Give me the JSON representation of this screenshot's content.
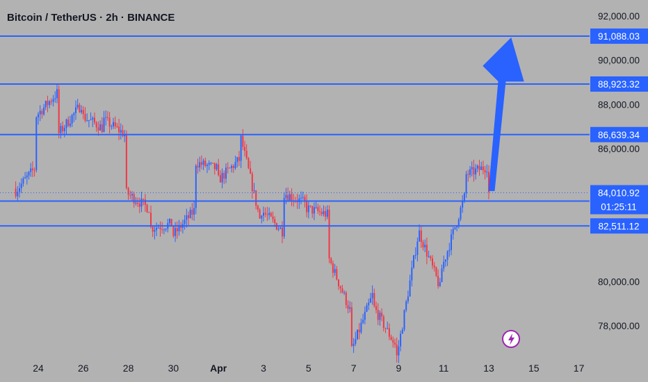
{
  "header": {
    "title": "Bitcoin / TetherUS · 2h · BINANCE"
  },
  "colors": {
    "background": "#b2b2b2",
    "bull": "#2962ff",
    "bear": "#f23645",
    "level_line": "#2962ff",
    "label_bg": "#2962ff",
    "label_text": "#ffffff",
    "axis_text": "#131722",
    "logo": "#9c27b0"
  },
  "icons": {
    "corner_logo": "lightning-bolt-icon"
  },
  "chart_data": {
    "type": "candlestick",
    "title": "Bitcoin / TetherUS · 2h · BINANCE",
    "interval": "2h",
    "exchange": "BINANCE",
    "xlabel": "",
    "ylabel": "",
    "ylim": [
      76000,
      92500
    ],
    "grid": false,
    "legend": "none",
    "y_ticks": [
      {
        "value": 92000,
        "label": "92,000.00"
      },
      {
        "value": 90000,
        "label": "90,000.00"
      },
      {
        "value": 88000,
        "label": "88,000.00"
      },
      {
        "value": 86000,
        "label": "86,000.00"
      },
      {
        "value": 80000,
        "label": "80,000.00"
      },
      {
        "value": 78000,
        "label": "78,000.00"
      }
    ],
    "x_ticks": [
      "24",
      "26",
      "28",
      "30",
      "Apr",
      "3",
      "5",
      "7",
      "9",
      "11",
      "13",
      "15",
      "17"
    ],
    "horizontal_levels": [
      {
        "value": 91088.03,
        "label": "91,088.03"
      },
      {
        "value": 88923.32,
        "label": "88,923.32"
      },
      {
        "value": 86639.34,
        "label": "86,639.34"
      },
      {
        "value": 83635.49,
        "label": "83,635.49"
      },
      {
        "value": 82511.12,
        "label": "82,511.12"
      }
    ],
    "current_price": {
      "value": 84010.92,
      "label": "84,010.92",
      "countdown": "01:25:11"
    },
    "projection_arrow": {
      "from_price": 84100,
      "to_price": 91000,
      "direction": "up"
    },
    "price_path": [
      {
        "date": "Mar 23",
        "price": 84200
      },
      {
        "date": "Mar 23 12:00",
        "price": 84000
      },
      {
        "date": "Mar 24",
        "price": 85200
      },
      {
        "date": "Mar 24 12:00",
        "price": 87500
      },
      {
        "date": "Mar 25",
        "price": 88600
      },
      {
        "date": "Mar 25 12:00",
        "price": 86700
      },
      {
        "date": "Mar 26",
        "price": 88000
      },
      {
        "date": "Mar 26 12:00",
        "price": 87500
      },
      {
        "date": "Mar 27",
        "price": 86900
      },
      {
        "date": "Mar 27 12:00",
        "price": 87300
      },
      {
        "date": "Mar 28",
        "price": 86600
      },
      {
        "date": "Mar 28 12:00",
        "price": 84000
      },
      {
        "date": "Mar 29",
        "price": 83300
      },
      {
        "date": "Mar 29 12:00",
        "price": 82400
      },
      {
        "date": "Mar 30",
        "price": 82600
      },
      {
        "date": "Mar 30 12:00",
        "price": 82000
      },
      {
        "date": "Mar 31",
        "price": 83200
      },
      {
        "date": "Mar 31 12:00",
        "price": 85400
      },
      {
        "date": "Apr 1",
        "price": 85100
      },
      {
        "date": "Apr 1 12:00",
        "price": 84500
      },
      {
        "date": "Apr 2",
        "price": 85500
      },
      {
        "date": "Apr 2 12:00",
        "price": 86800
      },
      {
        "date": "Apr 3",
        "price": 82500
      },
      {
        "date": "Apr 3 12:00",
        "price": 83200
      },
      {
        "date": "Apr 4",
        "price": 82200
      },
      {
        "date": "Apr 4 12:00",
        "price": 84000
      },
      {
        "date": "Apr 5",
        "price": 83500
      },
      {
        "date": "Apr 5 12:00",
        "price": 83300
      },
      {
        "date": "Apr 6",
        "price": 83000
      },
      {
        "date": "Apr 6 12:00",
        "price": 81000
      },
      {
        "date": "Apr 7",
        "price": 78500
      },
      {
        "date": "Apr 7 12:00",
        "price": 76900
      },
      {
        "date": "Apr 8",
        "price": 79600
      },
      {
        "date": "Apr 8 12:00",
        "price": 78800
      },
      {
        "date": "Apr 9",
        "price": 77000
      },
      {
        "date": "Apr 9 12:00",
        "price": 76600
      },
      {
        "date": "Apr 10",
        "price": 82400
      },
      {
        "date": "Apr 10 12:00",
        "price": 82200
      },
      {
        "date": "Apr 11",
        "price": 79500
      },
      {
        "date": "Apr 11 12:00",
        "price": 80600
      },
      {
        "date": "Apr 12",
        "price": 83800
      },
      {
        "date": "Apr 12 12:00",
        "price": 84800
      },
      {
        "date": "Apr 13",
        "price": 85200
      },
      {
        "date": "Apr 13 12:00",
        "price": 84300
      },
      {
        "date": "Apr 13 18:00",
        "price": 84010.92
      }
    ]
  }
}
